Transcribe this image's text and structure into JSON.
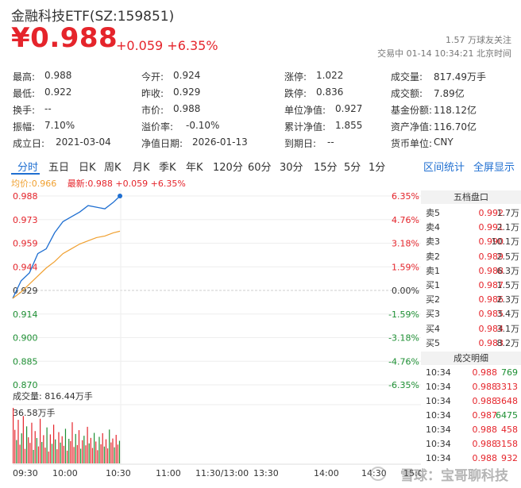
{
  "header": {
    "title": "金融科技ETF(SZ:159851)",
    "price": "¥0.988",
    "change": "+0.059 +6.35%",
    "followers": "1.57 万球友关注",
    "status": "交易中 01-14 10:34:21 北京时间"
  },
  "quote": {
    "col1": [
      {
        "label": "最高:",
        "value": "0.988",
        "color": "red"
      },
      {
        "label": "最低:",
        "value": "0.922",
        "color": "green"
      },
      {
        "label": "换手:",
        "value": "--",
        "color": "plain"
      },
      {
        "label": "振幅:",
        "value": "7.10%",
        "color": "plain"
      },
      {
        "label": "成立日:",
        "value": "2021-03-04",
        "color": "plain"
      }
    ],
    "col2": [
      {
        "label": "今开:",
        "value": "0.924",
        "color": "green"
      },
      {
        "label": "昨收:",
        "value": "0.929",
        "color": "plain"
      },
      {
        "label": "市价:",
        "value": "0.988",
        "color": "plain"
      },
      {
        "label": "溢价率:",
        "value": "-0.10%",
        "color": "plain"
      },
      {
        "label": "净值日期:",
        "value": "2026-01-13",
        "color": "plain"
      }
    ],
    "col3": [
      {
        "label": "涨停:",
        "value": "1.022",
        "color": "red"
      },
      {
        "label": "跌停:",
        "value": "0.836",
        "color": "green"
      },
      {
        "label": "单位净值:",
        "value": "0.927",
        "color": "plain"
      },
      {
        "label": "累计净值:",
        "value": "1.855",
        "color": "plain"
      },
      {
        "label": "到期日:",
        "value": "--",
        "color": "plain"
      }
    ],
    "col4": [
      {
        "label": "成交量:",
        "value": "817.49万手",
        "color": "plain"
      },
      {
        "label": "成交额:",
        "value": "7.89亿",
        "color": "plain"
      },
      {
        "label": "基金份额:",
        "value": "118.12亿",
        "color": "plain"
      },
      {
        "label": "资产净值:",
        "value": "116.70亿",
        "color": "plain"
      },
      {
        "label": "货币单位:",
        "value": "CNY",
        "color": "plain"
      }
    ]
  },
  "tabs": [
    "分时",
    "五日",
    "日K",
    "周K",
    "月K",
    "季K",
    "年K",
    "120分",
    "60分",
    "30分",
    "15分",
    "5分",
    "1分"
  ],
  "active_tab": "分时",
  "right_links": [
    "区间统计",
    "全屏显示"
  ],
  "legend": {
    "avg": "均价:0.966",
    "latest_prefix": "最新:",
    "latest": "0.988 +0.059 +6.35%"
  },
  "volume": {
    "title": "成交量: 816.44万手",
    "max_label": "36.58万手"
  },
  "x_labels": [
    "09:30",
    "10:00",
    "10:30",
    "11:00",
    "11:30/13:00",
    "13:30",
    "14:00",
    "14:30",
    "15:00"
  ],
  "colors": {
    "up": "#e5242b",
    "down": "#1d8f33",
    "price_line": "#1f6fd1",
    "avg_line": "#f0a030",
    "accent": "#1f6fd1"
  },
  "chart_data": {
    "type": "line",
    "title": "",
    "xlabel": "",
    "ylabel": "",
    "ylim": [
      0.87,
      0.988
    ],
    "y_ticks_left": [
      "0.988",
      "0.973",
      "0.959",
      "0.944",
      "0.929",
      "0.914",
      "0.900",
      "0.885",
      "0.870"
    ],
    "y_ticks_right": [
      "6.35%",
      "4.76%",
      "3.18%",
      "1.59%",
      "0.00%",
      "-1.59%",
      "-3.18%",
      "-4.76%",
      "-6.35%"
    ],
    "x": [
      "09:30",
      "09:35",
      "09:40",
      "09:45",
      "09:50",
      "09:55",
      "10:00",
      "10:05",
      "10:10",
      "10:15",
      "10:20",
      "10:25",
      "10:30",
      "10:34"
    ],
    "series": [
      {
        "values": [
          0.924,
          0.935,
          0.94,
          0.952,
          0.955,
          0.965,
          0.972,
          0.975,
          0.978,
          0.982,
          0.981,
          0.98,
          0.984,
          0.988
        ]
      },
      {
        "values": [
          0.924,
          0.928,
          0.933,
          0.938,
          0.943,
          0.947,
          0.952,
          0.955,
          0.958,
          0.96,
          0.962,
          0.963,
          0.965,
          0.966
        ]
      }
    ],
    "volume": {
      "unit": "万手",
      "values": [
        36.58,
        22.1,
        15.4,
        28.7,
        12.3,
        19.8,
        31.2,
        9.6,
        24.4,
        17.2,
        13.5,
        26.8,
        8.9,
        21.3,
        16.7,
        11.2,
        29.4,
        14.1,
        18.6,
        10.4,
        23.7,
        7.8,
        19.1,
        12.9,
        25.5,
        15.8,
        9.3,
        20.6,
        13.7,
        17.9,
        11.6,
        22.8,
        8.4,
        16.2,
        14.7,
        27.1,
        10.8,
        19.4,
        12.1,
        21.9,
        9.7,
        15.3,
        18.2,
        11.9,
        24.1,
        13.2,
        16.8,
        10.2,
        20.1,
        14.4,
        8.7,
        17.5,
        12.6,
        19.9,
        11.1,
        15.9,
        9.9,
        22.3,
        13.8,
        16.4,
        10.6,
        18.8,
        12.4,
        14.9
      ],
      "up": [
        true,
        true,
        false,
        true,
        true,
        false,
        true,
        true,
        false,
        true,
        true,
        true,
        false,
        true,
        false,
        true,
        true,
        false,
        true,
        true,
        false,
        true,
        true,
        false,
        true,
        false,
        true,
        true,
        false,
        true,
        true,
        false,
        true,
        false,
        true,
        true,
        true,
        false,
        true,
        true,
        false,
        true,
        false,
        true,
        true,
        false,
        true,
        true,
        false,
        true,
        true,
        false,
        true,
        true,
        false,
        true,
        true,
        false,
        true,
        true,
        false,
        true,
        true,
        false
      ]
    }
  },
  "orderbook": {
    "title": "五档盘口",
    "asks": [
      {
        "label": "卖5",
        "price": "0.992",
        "qty": "1.7万"
      },
      {
        "label": "卖4",
        "price": "0.991",
        "qty": "2.1万"
      },
      {
        "label": "卖3",
        "price": "0.990",
        "qty": "10.1万"
      },
      {
        "label": "卖2",
        "price": "0.989",
        "qty": "2.5万"
      },
      {
        "label": "卖1",
        "price": "0.988",
        "qty": "6.3万"
      }
    ],
    "bids": [
      {
        "label": "买1",
        "price": "0.987",
        "qty": "1.5万"
      },
      {
        "label": "买2",
        "price": "0.986",
        "qty": "2.3万"
      },
      {
        "label": "买3",
        "price": "0.985",
        "qty": "3.4万"
      },
      {
        "label": "买4",
        "price": "0.984",
        "qty": "3.1万"
      },
      {
        "label": "买5",
        "price": "0.983",
        "qty": "8.2万"
      }
    ]
  },
  "trades": {
    "title": "成交明细",
    "rows": [
      {
        "time": "10:34",
        "price": "0.988",
        "qty": "769",
        "dir": "down"
      },
      {
        "time": "10:34",
        "price": "0.988",
        "qty": "3313",
        "dir": "up"
      },
      {
        "time": "10:34",
        "price": "0.988",
        "qty": "3648",
        "dir": "up"
      },
      {
        "time": "10:34",
        "price": "0.987",
        "qty": "6475",
        "dir": "down"
      },
      {
        "time": "10:34",
        "price": "0.988",
        "qty": "458",
        "dir": "up"
      },
      {
        "time": "10:34",
        "price": "0.988",
        "qty": "3158",
        "dir": "up"
      },
      {
        "time": "10:34",
        "price": "0.988",
        "qty": "932",
        "dir": "up"
      }
    ]
  },
  "watermark": "雪球：宝哥聊科技"
}
